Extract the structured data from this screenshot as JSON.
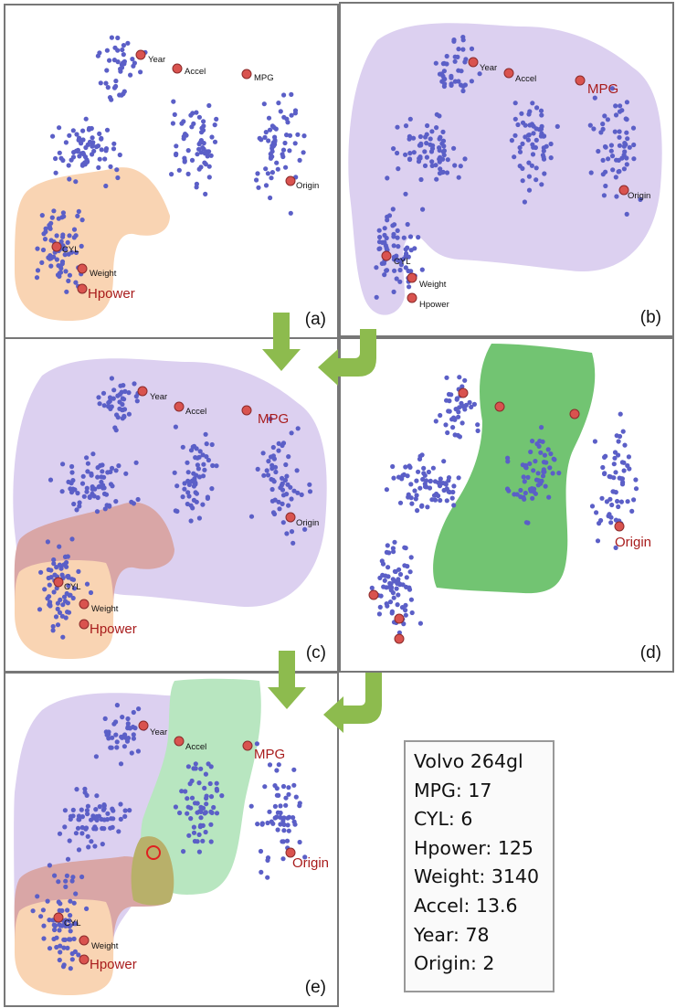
{
  "panels": [
    {
      "id": "a",
      "label": "(a)"
    },
    {
      "id": "b",
      "label": "(b)"
    },
    {
      "id": "c",
      "label": "(c)"
    },
    {
      "id": "d",
      "label": "(d)"
    },
    {
      "id": "e",
      "label": "(e)"
    }
  ],
  "attributes": {
    "year": "Year",
    "accel": "Accel",
    "mpg": "MPG",
    "origin": "Origin",
    "cyl": "CYL",
    "weight": "Weight",
    "hpower": "Hpower"
  },
  "info": {
    "name": "Volvo 264gl",
    "mpg": "MPG: 17",
    "cyl": "CYL: 6",
    "hpower": "Hpower: 125",
    "weight": "Weight: 3140",
    "accel": "Accel: 13.6",
    "year": "Year: 78",
    "origin": "Origin: 2"
  },
  "colors": {
    "point": "#5b5fc7",
    "attribute_node": "#d9534f",
    "purple_region": "#dcd0f0",
    "orange_region": "#f9d4b3",
    "red_region": "#d9a6a6",
    "green_region": "#72c472",
    "light_green_region": "#b8e6c0",
    "olive_region": "#b8b06a",
    "arrow": "#8dbb4e"
  }
}
